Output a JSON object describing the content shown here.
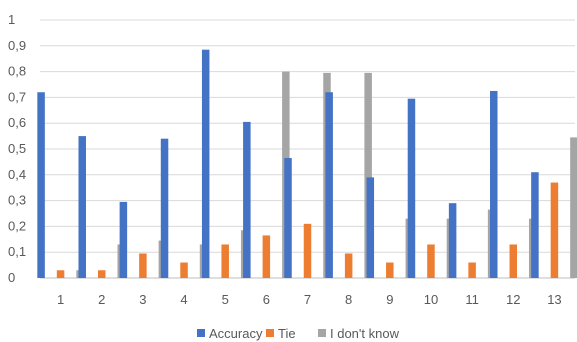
{
  "chart_data": {
    "type": "bar",
    "categories": [
      "1",
      "2",
      "3",
      "4",
      "5",
      "6",
      "7",
      "8",
      "9",
      "10",
      "11",
      "12",
      "13"
    ],
    "series": [
      {
        "name": "Accuracy",
        "color": "#4472C4",
        "values": [
          0.72,
          0.55,
          0.295,
          0.54,
          0.885,
          0.605,
          0.465,
          0.72,
          0.39,
          0.695,
          0.29,
          0.725,
          0.41
        ]
      },
      {
        "name": "Tie",
        "color": "#ED7D31",
        "values": [
          0.03,
          0.03,
          0.095,
          0.06,
          0.13,
          0.165,
          0.21,
          0.095,
          0.06,
          0.13,
          0.06,
          0.13,
          0.37
        ]
      },
      {
        "name": "I don't know",
        "color": "#A5A5A5",
        "values": [
          0.03,
          0.13,
          0.145,
          0.13,
          0.185,
          0.8,
          0.795,
          0.795,
          0.23,
          0.23,
          0.265,
          0.23,
          0.545
        ]
      }
    ],
    "ylim": [
      0,
      1
    ],
    "yticks": [
      0,
      0.1,
      0.2,
      0.3,
      0.4,
      0.5,
      0.6,
      0.7,
      0.8,
      0.9,
      1
    ],
    "ytick_labels": [
      "0",
      "0,1",
      "0,2",
      "0,3",
      "0,4",
      "0,5",
      "0,6",
      "0,7",
      "0,8",
      "0,9",
      "1"
    ],
    "grid": true,
    "legend_position": "bottom"
  }
}
